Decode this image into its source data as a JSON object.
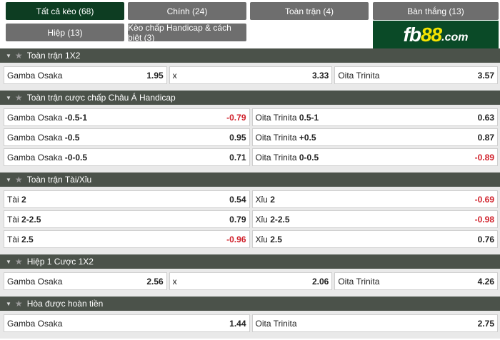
{
  "tabs": [
    {
      "label": "Tất cả kèo (68)",
      "active": true
    },
    {
      "label": "Chính (24)"
    },
    {
      "label": "Toàn trận (4)"
    },
    {
      "label": "Bàn thắng (13)"
    },
    {
      "label": "Hiệp (13)"
    },
    {
      "label": "Kèo chấp Handicap & cách biệt (3)"
    }
  ],
  "logo": {
    "text": "fb88.com"
  },
  "sections": [
    {
      "title": "Toàn trận 1X2",
      "rows": [
        [
          {
            "name": "Gamba Osaka",
            "line": "",
            "odds": "1.95"
          },
          {
            "name": "x",
            "line": "",
            "odds": "3.33"
          },
          {
            "name": "Oita Trinita",
            "line": "",
            "odds": "3.57"
          }
        ]
      ]
    },
    {
      "title": "Toàn trận cược chấp Châu Á Handicap",
      "rows": [
        [
          {
            "name": "Gamba Osaka",
            "line": "-0.5-1",
            "odds": "-0.79"
          },
          {
            "name": "Oita Trinita",
            "line": "0.5-1",
            "odds": "0.63"
          }
        ],
        [
          {
            "name": "Gamba Osaka",
            "line": "-0.5",
            "odds": "0.95"
          },
          {
            "name": "Oita Trinita",
            "line": "+0.5",
            "odds": "0.87"
          }
        ],
        [
          {
            "name": "Gamba Osaka",
            "line": "-0-0.5",
            "odds": "0.71"
          },
          {
            "name": "Oita Trinita",
            "line": "0-0.5",
            "odds": "-0.89"
          }
        ]
      ]
    },
    {
      "title": "Toàn trận Tài/Xỉu",
      "rows": [
        [
          {
            "name": "Tài",
            "line": "2",
            "odds": "0.54"
          },
          {
            "name": "Xỉu",
            "line": "2",
            "odds": "-0.69"
          }
        ],
        [
          {
            "name": "Tài",
            "line": "2-2.5",
            "odds": "0.79"
          },
          {
            "name": "Xỉu",
            "line": "2-2.5",
            "odds": "-0.98"
          }
        ],
        [
          {
            "name": "Tài",
            "line": "2.5",
            "odds": "-0.96"
          },
          {
            "name": "Xỉu",
            "line": "2.5",
            "odds": "0.76"
          }
        ]
      ]
    },
    {
      "title": "Hiệp 1 Cược 1X2",
      "rows": [
        [
          {
            "name": "Gamba Osaka",
            "line": "",
            "odds": "2.56"
          },
          {
            "name": "x",
            "line": "",
            "odds": "2.06"
          },
          {
            "name": "Oita Trinita",
            "line": "",
            "odds": "4.26"
          }
        ]
      ]
    },
    {
      "title": "Hòa được hoàn tiền",
      "rows": [
        [
          {
            "name": "Gamba Osaka",
            "line": "",
            "odds": "1.44"
          },
          {
            "name": "Oita Trinita",
            "line": "",
            "odds": "2.75"
          }
        ]
      ]
    }
  ]
}
